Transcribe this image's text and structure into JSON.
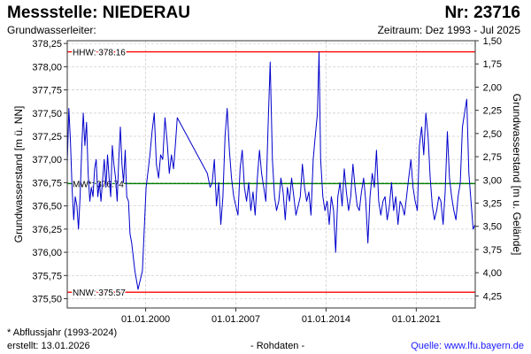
{
  "header": {
    "title": "Messstelle: NIEDERAU",
    "number": "Nr: 23716",
    "aquifer_label": "Grundwasserleiter:",
    "period": "Zeitraum: Dez 1993 - Jul 2025"
  },
  "footer": {
    "note": "* Abflussjahr (1993-2024)",
    "created": "erstellt:  13.01.2026",
    "raw": "- Rohdaten -",
    "source": "Quelle: www.lfu.bayern.de"
  },
  "colors": {
    "series": "#0000cc",
    "extreme_lines": "#ff0000",
    "mean_line": "#008000",
    "grid": "#d0d0d0"
  },
  "chart_data": {
    "type": "line",
    "xlabel": "",
    "ylabel": "Grundwasserstand [m ü. NN]",
    "ylabel_right": "Grundwasserstand [m u. Gelände]",
    "ylim": [
      375.4,
      378.28
    ],
    "xlim": [
      "1993-12-01",
      "2025-07-31"
    ],
    "x_ticks": [
      {
        "date": "2000-01-01",
        "label": "01.01.2000"
      },
      {
        "date": "2007-01-01",
        "label": "01.01.2007"
      },
      {
        "date": "2014-01-01",
        "label": "01.01.2014"
      },
      {
        "date": "2021-01-01",
        "label": "01.01.2021"
      }
    ],
    "y_ticks": [
      {
        "value": 375.5,
        "label": "375,50"
      },
      {
        "value": 375.75,
        "label": "375,75"
      },
      {
        "value": 376.0,
        "label": "376,00"
      },
      {
        "value": 376.25,
        "label": "376,25"
      },
      {
        "value": 376.5,
        "label": "376,50"
      },
      {
        "value": 376.75,
        "label": "376,75"
      },
      {
        "value": 377.0,
        "label": "377,00"
      },
      {
        "value": 377.25,
        "label": "377,25"
      },
      {
        "value": 377.5,
        "label": "377,50"
      },
      {
        "value": 377.75,
        "label": "377,75"
      },
      {
        "value": 378.0,
        "label": "378,00"
      },
      {
        "value": 378.25,
        "label": "378,25"
      }
    ],
    "y_ticks_right": [
      {
        "value": 378.28,
        "label": "1,50"
      },
      {
        "value": 378.03,
        "label": "1,75"
      },
      {
        "value": 377.78,
        "label": "2,00"
      },
      {
        "value": 377.53,
        "label": "2,25"
      },
      {
        "value": 377.28,
        "label": "2,50"
      },
      {
        "value": 377.03,
        "label": "2,75"
      },
      {
        "value": 376.78,
        "label": "3,00"
      },
      {
        "value": 376.53,
        "label": "3,25"
      },
      {
        "value": 376.28,
        "label": "3,50"
      },
      {
        "value": 376.03,
        "label": "3,75"
      },
      {
        "value": 375.78,
        "label": "4,00"
      },
      {
        "value": 375.53,
        "label": "4,25"
      }
    ],
    "grid": true,
    "reference_lines": [
      {
        "value": 378.16,
        "label": "HHW: 378.16",
        "color": "#ff0000"
      },
      {
        "value": 376.74,
        "label": "MW*: 376.74",
        "color": "#008000"
      },
      {
        "value": 375.57,
        "label": "NNW: 375.57",
        "color": "#ff0000"
      }
    ],
    "series": [
      {
        "x": [
          "1993-12-01",
          "1994-01-15",
          "1994-03-01",
          "1994-04-15",
          "1994-06-01",
          "1994-07-15",
          "1994-09-01",
          "1994-10-15",
          "1994-12-01",
          "1995-01-15",
          "1995-03-01",
          "1995-04-15",
          "1995-06-01",
          "1995-07-15",
          "1995-09-01",
          "1995-10-15",
          "1995-12-01",
          "1996-01-15",
          "1996-03-01",
          "1996-04-15",
          "1996-06-01",
          "1996-07-15",
          "1996-09-01",
          "1996-10-15",
          "1996-12-01",
          "1997-01-15",
          "1997-03-01",
          "1997-04-15",
          "1997-06-01",
          "1997-07-15",
          "1997-09-01",
          "1997-10-15",
          "1997-12-01",
          "1998-01-15",
          "1998-03-01",
          "1998-04-15",
          "1998-06-01",
          "1998-07-15",
          "1998-09-01",
          "1998-10-15",
          "1998-12-01",
          "1999-03-01",
          "1999-06-01",
          "1999-10-01",
          "2000-01-15",
          "2000-03-01",
          "2000-05-01",
          "2000-07-01",
          "2000-09-01",
          "2000-11-01",
          "2001-01-01",
          "2001-03-01",
          "2001-05-01",
          "2001-07-01",
          "2001-09-01",
          "2001-11-01",
          "2002-01-01",
          "2002-03-01",
          "2002-05-01",
          "2002-06-15",
          "2004-10-15",
          "2005-01-01",
          "2005-03-01",
          "2005-05-01",
          "2005-07-01",
          "2005-09-01",
          "2005-11-01",
          "2006-01-01",
          "2006-03-01",
          "2006-05-01",
          "2006-07-01",
          "2006-09-01",
          "2006-11-01",
          "2007-01-01",
          "2007-03-01",
          "2007-05-01",
          "2007-07-01",
          "2007-09-01",
          "2007-11-01",
          "2008-01-01",
          "2008-03-01",
          "2008-05-01",
          "2008-07-01",
          "2008-09-01",
          "2008-11-01",
          "2009-01-01",
          "2009-03-01",
          "2009-05-01",
          "2009-07-01",
          "2009-09-01",
          "2009-11-01",
          "2010-01-01",
          "2010-03-01",
          "2010-05-01",
          "2010-07-01",
          "2010-09-01",
          "2010-11-01",
          "2011-01-01",
          "2011-03-01",
          "2011-05-01",
          "2011-07-01",
          "2011-09-01",
          "2011-11-01",
          "2012-01-01",
          "2012-03-01",
          "2012-05-01",
          "2012-07-01",
          "2012-09-01",
          "2012-11-01",
          "2013-01-01",
          "2013-03-01",
          "2013-05-01",
          "2013-06-15",
          "2013-08-01",
          "2013-10-01",
          "2013-12-01",
          "2014-02-01",
          "2014-04-01",
          "2014-06-01",
          "2014-08-01",
          "2014-10-01",
          "2014-12-01",
          "2015-02-01",
          "2015-04-01",
          "2015-06-01",
          "2015-08-01",
          "2015-10-01",
          "2015-12-01",
          "2016-02-01",
          "2016-04-01",
          "2016-06-01",
          "2016-08-01",
          "2016-10-01",
          "2016-12-01",
          "2017-02-01",
          "2017-04-01",
          "2017-06-01",
          "2017-08-01",
          "2017-10-01",
          "2017-12-01",
          "2018-02-01",
          "2018-04-01",
          "2018-06-01",
          "2018-08-01",
          "2018-10-01",
          "2018-12-01",
          "2019-02-01",
          "2019-04-01",
          "2019-06-01",
          "2019-08-01",
          "2019-10-01",
          "2019-12-01",
          "2020-02-01",
          "2020-04-01",
          "2020-06-01",
          "2020-08-01",
          "2020-10-01",
          "2020-12-01",
          "2021-02-01",
          "2021-04-01",
          "2021-06-01",
          "2021-08-01",
          "2021-10-01",
          "2021-12-01",
          "2022-02-01",
          "2022-04-01",
          "2022-06-01",
          "2022-08-01",
          "2022-10-01",
          "2022-12-01",
          "2023-02-01",
          "2023-04-01",
          "2023-06-01",
          "2023-08-01",
          "2023-10-01",
          "2023-12-01",
          "2024-02-01",
          "2024-04-01",
          "2024-06-01",
          "2024-08-01",
          "2024-10-01",
          "2024-12-01",
          "2025-02-01",
          "2025-04-01",
          "2025-06-01",
          "2025-07-31"
        ],
        "y": [
          376.95,
          377.55,
          377.2,
          376.7,
          376.35,
          376.6,
          376.5,
          376.25,
          376.6,
          377.1,
          377.5,
          377.15,
          377.4,
          376.85,
          376.55,
          376.7,
          376.6,
          376.9,
          377.0,
          376.6,
          376.75,
          376.55,
          376.8,
          377.0,
          376.7,
          377.05,
          376.8,
          376.6,
          377.15,
          376.95,
          376.8,
          376.55,
          377.0,
          377.35,
          376.95,
          376.75,
          377.1,
          376.6,
          376.55,
          376.2,
          376.1,
          375.8,
          375.6,
          375.8,
          376.7,
          376.85,
          377.05,
          377.3,
          377.5,
          376.95,
          376.8,
          377.05,
          377.0,
          377.45,
          377.2,
          376.85,
          377.05,
          376.9,
          377.2,
          377.45,
          376.85,
          376.7,
          376.75,
          377.0,
          376.5,
          376.75,
          376.3,
          376.6,
          377.25,
          377.55,
          377.1,
          376.8,
          376.6,
          376.5,
          376.4,
          376.9,
          377.1,
          376.7,
          376.55,
          376.75,
          376.45,
          376.65,
          376.4,
          376.8,
          377.1,
          376.85,
          376.7,
          376.55,
          377.35,
          378.05,
          377.0,
          376.6,
          376.45,
          376.55,
          376.8,
          376.65,
          376.35,
          376.7,
          376.55,
          376.8,
          376.6,
          376.4,
          376.5,
          376.6,
          376.95,
          376.7,
          376.55,
          376.65,
          376.4,
          377.0,
          377.25,
          377.5,
          378.16,
          377.0,
          376.6,
          376.45,
          376.55,
          376.3,
          376.6,
          376.45,
          376.0,
          376.6,
          376.75,
          376.5,
          376.9,
          376.65,
          376.45,
          376.6,
          376.95,
          376.7,
          376.5,
          376.45,
          376.65,
          376.8,
          376.55,
          376.1,
          376.6,
          376.85,
          376.7,
          377.1,
          376.55,
          376.4,
          376.55,
          376.6,
          376.35,
          376.5,
          376.75,
          376.45,
          376.6,
          376.3,
          376.55,
          376.5,
          376.4,
          376.6,
          376.8,
          377.0,
          376.7,
          376.55,
          376.45,
          377.15,
          377.35,
          377.05,
          377.5,
          377.25,
          376.8,
          376.5,
          376.35,
          376.45,
          376.6,
          376.55,
          376.3,
          376.65,
          377.3,
          376.8,
          376.6,
          376.45,
          376.35,
          376.6,
          376.75,
          377.35,
          377.5,
          377.65,
          376.85,
          376.55,
          376.25,
          376.3
        ]
      }
    ]
  }
}
